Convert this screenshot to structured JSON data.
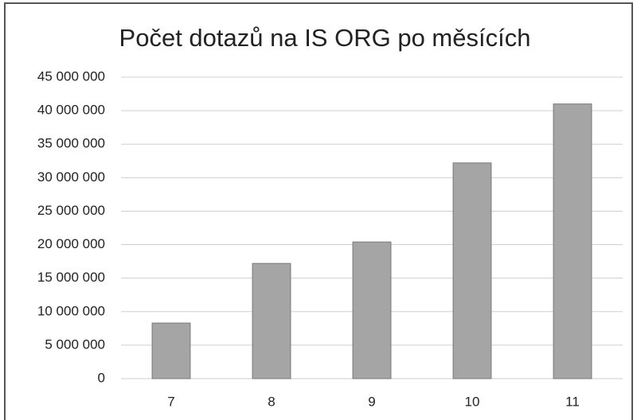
{
  "chart_data": {
    "type": "bar",
    "title": "Počet dotazů na IS ORG po měsících",
    "categories": [
      "7",
      "8",
      "9",
      "10",
      "11"
    ],
    "values": [
      8300000,
      17200000,
      20400000,
      32200000,
      41000000
    ],
    "color": "#a5a5a5",
    "ylim": [
      0,
      45000000
    ],
    "yticks": [
      0,
      {
        "value": 5000000,
        "label": "5 000 000"
      },
      {
        "value": 10000000,
        "label": "10 000 000"
      },
      {
        "value": 15000000,
        "label": "15 000 000"
      },
      {
        "value": 20000000,
        "label": "20 000 000"
      },
      {
        "value": 25000000,
        "label": "25 000 000"
      },
      {
        "value": 30000000,
        "label": "30 000 000"
      },
      {
        "value": 35000000,
        "label": "35 000 000"
      },
      {
        "value": 40000000,
        "label": "40 000 000"
      },
      {
        "value": 45000000,
        "label": "45 000 000"
      }
    ],
    "grid": true
  }
}
